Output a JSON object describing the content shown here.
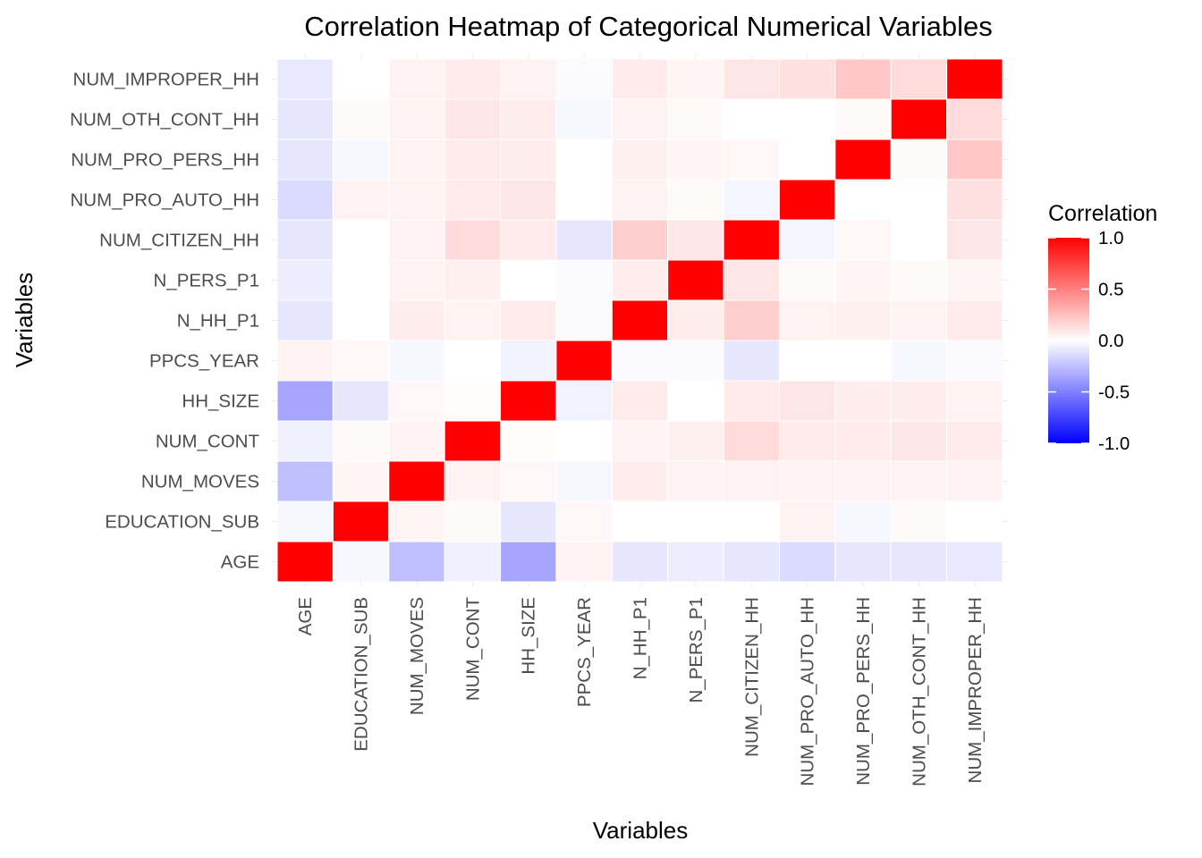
{
  "chart_data": {
    "type": "heatmap",
    "title": "Correlation Heatmap of Categorical Numerical Variables",
    "xlabel": "Variables",
    "ylabel": "Variables",
    "variables": [
      "AGE",
      "EDUCATION_SUB",
      "NUM_MOVES",
      "NUM_CONT",
      "HH_SIZE",
      "PPCS_YEAR",
      "N_HH_P1",
      "N_PERS_P1",
      "NUM_CITIZEN_HH",
      "NUM_PRO_AUTO_HH",
      "NUM_PRO_PERS_HH",
      "NUM_OTH_CONT_HH",
      "NUM_IMPROPER_HH"
    ],
    "matrix": [
      [
        1.0,
        -0.03,
        -0.25,
        -0.06,
        -0.35,
        0.05,
        -0.1,
        -0.07,
        -0.1,
        -0.14,
        -0.1,
        -0.1,
        -0.09
      ],
      [
        -0.03,
        1.0,
        0.04,
        0.02,
        -0.1,
        0.03,
        0.0,
        0.0,
        0.0,
        0.05,
        -0.03,
        0.02,
        0.0
      ],
      [
        -0.25,
        0.04,
        1.0,
        0.05,
        0.03,
        -0.03,
        0.07,
        0.05,
        0.05,
        0.05,
        0.05,
        0.05,
        0.05
      ],
      [
        -0.06,
        0.02,
        0.05,
        1.0,
        0.01,
        0.0,
        0.05,
        0.06,
        0.14,
        0.08,
        0.08,
        0.1,
        0.08
      ],
      [
        -0.35,
        -0.1,
        0.03,
        0.01,
        1.0,
        -0.05,
        0.08,
        0.0,
        0.08,
        0.1,
        0.07,
        0.07,
        0.05
      ],
      [
        0.05,
        0.03,
        -0.03,
        0.0,
        -0.05,
        1.0,
        -0.02,
        -0.02,
        -0.1,
        0.0,
        0.0,
        -0.03,
        -0.02
      ],
      [
        -0.1,
        0.0,
        0.07,
        0.05,
        0.08,
        -0.02,
        1.0,
        0.07,
        0.19,
        0.05,
        0.06,
        0.05,
        0.08
      ],
      [
        -0.07,
        0.0,
        0.05,
        0.06,
        0.0,
        -0.02,
        0.07,
        1.0,
        0.1,
        0.02,
        0.04,
        0.02,
        0.04
      ],
      [
        -0.1,
        0.0,
        0.05,
        0.14,
        0.08,
        -0.1,
        0.19,
        0.1,
        1.0,
        -0.04,
        0.03,
        0.0,
        0.1
      ],
      [
        -0.14,
        0.05,
        0.05,
        0.08,
        0.1,
        0.0,
        0.05,
        0.02,
        -0.04,
        1.0,
        0.0,
        0.0,
        0.12
      ],
      [
        -0.1,
        -0.03,
        0.05,
        0.08,
        0.07,
        0.0,
        0.06,
        0.04,
        0.03,
        0.0,
        1.0,
        0.02,
        0.22
      ],
      [
        -0.1,
        0.02,
        0.05,
        0.1,
        0.07,
        -0.03,
        0.05,
        0.02,
        0.0,
        0.0,
        0.02,
        1.0,
        0.14
      ],
      [
        -0.09,
        0.0,
        0.05,
        0.08,
        0.05,
        -0.02,
        0.08,
        0.04,
        0.1,
        0.12,
        0.22,
        0.14,
        1.0
      ]
    ],
    "zlim": [
      -1.0,
      1.0
    ],
    "colors": {
      "low": "#0000ff",
      "mid": "#ffffff",
      "high": "#ff0000"
    },
    "legend": {
      "title": "Correlation",
      "placement": "right",
      "ticks": [
        1.0,
        0.5,
        0.0,
        -0.5,
        -1.0
      ],
      "tick_labels": [
        "1.0",
        "0.5",
        "0.0",
        "-0.5",
        "-1.0"
      ]
    },
    "grid": true
  }
}
